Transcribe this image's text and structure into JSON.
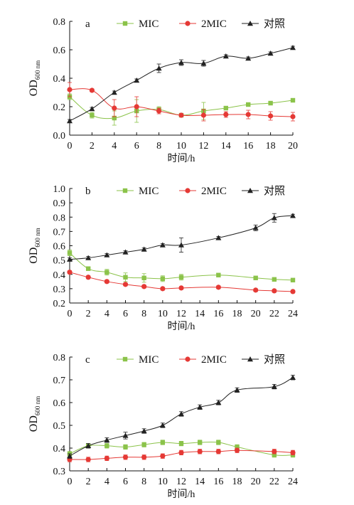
{
  "colors": {
    "MIC": "#8bc34a",
    "2MIC": "#e53935",
    "control": "#222222",
    "axis": "#111111"
  },
  "legend": {
    "entries": [
      {
        "key": "MIC",
        "label": "MIC",
        "marker": "square"
      },
      {
        "key": "2MIC",
        "label": "2MIC",
        "marker": "circle"
      },
      {
        "key": "control",
        "label": "对照",
        "marker": "triangle"
      }
    ]
  },
  "chart_data": [
    {
      "type": "line",
      "panel": "a",
      "xlabel": "时间/h",
      "ylabel_main": "OD",
      "ylabel_sub": "600 nm",
      "xlim": [
        0,
        20
      ],
      "ylim": [
        0.0,
        0.8
      ],
      "xticks": [
        0,
        2,
        4,
        6,
        8,
        10,
        12,
        14,
        16,
        18,
        20
      ],
      "yticks": [
        0.0,
        0.2,
        0.4,
        0.6,
        0.8
      ],
      "ytick_decimals": 1,
      "grid": false,
      "legend_position": "top",
      "series": [
        {
          "name": "MIC",
          "key": "MIC",
          "marker": "square",
          "x": [
            0,
            2,
            4,
            6,
            8,
            10,
            12,
            14,
            16,
            18,
            20
          ],
          "y": [
            0.27,
            0.14,
            0.12,
            0.17,
            0.18,
            0.14,
            0.17,
            0.19,
            0.215,
            0.225,
            0.245
          ],
          "err": [
            0.02,
            0.02,
            0.05,
            0.08,
            0.02,
            0.01,
            0.06,
            0.01,
            0.01,
            0.01,
            0.01
          ]
        },
        {
          "name": "2MIC",
          "key": "2MIC",
          "marker": "circle",
          "x": [
            0,
            2,
            4,
            6,
            8,
            10,
            12,
            14,
            16,
            18,
            20
          ],
          "y": [
            0.32,
            0.315,
            0.19,
            0.2,
            0.17,
            0.14,
            0.14,
            0.145,
            0.145,
            0.135,
            0.13
          ],
          "err": [
            0.05,
            0.01,
            0.06,
            0.07,
            0.02,
            0.01,
            0.04,
            0.02,
            0.03,
            0.03,
            0.03
          ]
        },
        {
          "name": "对照",
          "key": "control",
          "marker": "triangle",
          "x": [
            0,
            2,
            4,
            6,
            8,
            10,
            12,
            14,
            16,
            18,
            20
          ],
          "y": [
            0.1,
            0.185,
            0.3,
            0.385,
            0.47,
            0.51,
            0.505,
            0.555,
            0.54,
            0.575,
            0.615
          ],
          "err": [
            0.01,
            0.01,
            0.01,
            0.01,
            0.03,
            0.02,
            0.02,
            0.01,
            0.01,
            0.01,
            0.01
          ]
        }
      ]
    },
    {
      "type": "line",
      "panel": "b",
      "xlabel": "时间/h",
      "ylabel_main": "OD",
      "ylabel_sub": "600 nm",
      "xlim": [
        0,
        24
      ],
      "ylim": [
        0.2,
        1.0
      ],
      "xticks": [
        0,
        2,
        4,
        6,
        8,
        10,
        12,
        14,
        16,
        18,
        20,
        22,
        24
      ],
      "yticks": [
        0.2,
        0.3,
        0.4,
        0.5,
        0.6,
        0.7,
        0.8,
        0.9,
        1.0
      ],
      "ytick_decimals": 1,
      "grid": false,
      "legend_position": "top",
      "series": [
        {
          "name": "MIC",
          "key": "MIC",
          "marker": "square",
          "x": [
            0,
            2,
            4,
            6,
            8,
            10,
            12,
            16,
            20,
            22,
            24
          ],
          "y": [
            0.55,
            0.44,
            0.415,
            0.38,
            0.375,
            0.37,
            0.38,
            0.395,
            0.375,
            0.365,
            0.36
          ],
          "err": [
            0.02,
            0.01,
            0.02,
            0.03,
            0.03,
            0.02,
            0.02,
            0.01,
            0.01,
            0.01,
            0.01
          ]
        },
        {
          "name": "2MIC",
          "key": "2MIC",
          "marker": "circle",
          "x": [
            0,
            2,
            4,
            6,
            8,
            10,
            12,
            16,
            20,
            22,
            24
          ],
          "y": [
            0.415,
            0.38,
            0.35,
            0.33,
            0.315,
            0.3,
            0.305,
            0.31,
            0.29,
            0.285,
            0.28
          ],
          "err": [
            0.01,
            0.01,
            0.01,
            0.01,
            0.01,
            0.01,
            0.01,
            0.01,
            0.01,
            0.01,
            0.01
          ]
        },
        {
          "name": "对照",
          "key": "control",
          "marker": "triangle",
          "x": [
            0,
            2,
            4,
            6,
            8,
            10,
            12,
            16,
            20,
            22,
            24
          ],
          "y": [
            0.505,
            0.515,
            0.535,
            0.555,
            0.575,
            0.605,
            0.605,
            0.655,
            0.725,
            0.795,
            0.81
          ],
          "err": [
            0.01,
            0.01,
            0.01,
            0.01,
            0.01,
            0.01,
            0.05,
            0.01,
            0.02,
            0.03,
            0.01
          ]
        }
      ]
    },
    {
      "type": "line",
      "panel": "c",
      "xlabel": "时间/h",
      "ylabel_main": "OD",
      "ylabel_sub": "600 nm",
      "xlim": [
        0,
        24
      ],
      "ylim": [
        0.3,
        0.8
      ],
      "xticks": [
        0,
        2,
        4,
        6,
        8,
        10,
        12,
        14,
        16,
        18,
        20,
        22,
        24
      ],
      "yticks": [
        0.3,
        0.4,
        0.5,
        0.6,
        0.7,
        0.8
      ],
      "ytick_decimals": 1,
      "grid": false,
      "legend_position": "top",
      "series": [
        {
          "name": "MIC",
          "key": "MIC",
          "marker": "square",
          "x": [
            0,
            2,
            4,
            6,
            8,
            10,
            12,
            14,
            16,
            18,
            22,
            24
          ],
          "y": [
            0.375,
            0.41,
            0.41,
            0.405,
            0.415,
            0.425,
            0.42,
            0.425,
            0.425,
            0.405,
            0.37,
            0.37
          ],
          "err": [
            0.01,
            0.01,
            0.01,
            0.01,
            0.01,
            0.01,
            0.01,
            0.01,
            0.01,
            0.01,
            0.01,
            0.01
          ]
        },
        {
          "name": "2MIC",
          "key": "2MIC",
          "marker": "circle",
          "x": [
            0,
            2,
            4,
            6,
            8,
            10,
            12,
            14,
            16,
            18,
            22,
            24
          ],
          "y": [
            0.35,
            0.35,
            0.355,
            0.36,
            0.36,
            0.365,
            0.38,
            0.385,
            0.385,
            0.39,
            0.385,
            0.38
          ],
          "err": [
            0.01,
            0.01,
            0.01,
            0.01,
            0.01,
            0.01,
            0.01,
            0.01,
            0.01,
            0.01,
            0.01,
            0.01
          ]
        },
        {
          "name": "对照",
          "key": "control",
          "marker": "triangle",
          "x": [
            0,
            2,
            4,
            6,
            8,
            10,
            12,
            14,
            16,
            18,
            22,
            24
          ],
          "y": [
            0.365,
            0.41,
            0.435,
            0.455,
            0.475,
            0.5,
            0.55,
            0.58,
            0.6,
            0.655,
            0.67,
            0.71
          ],
          "err": [
            0.01,
            0.01,
            0.01,
            0.015,
            0.01,
            0.01,
            0.01,
            0.01,
            0.01,
            0.01,
            0.01,
            0.01
          ]
        }
      ]
    }
  ]
}
